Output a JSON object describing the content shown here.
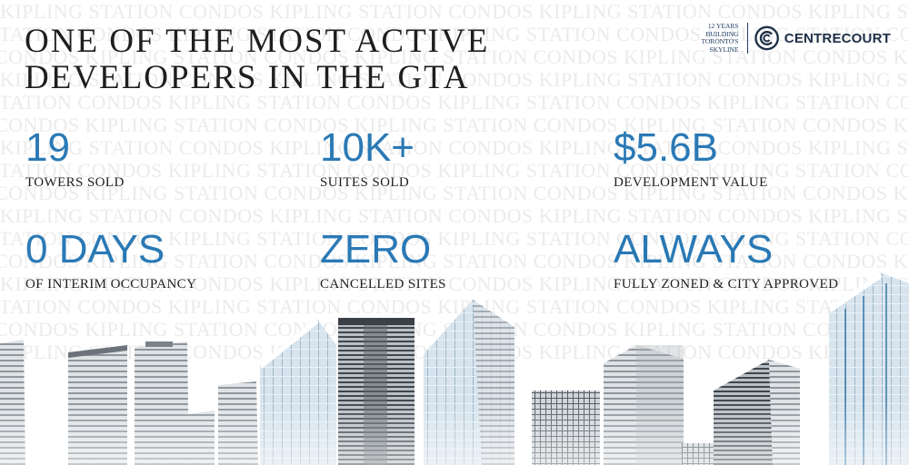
{
  "watermark": {
    "rows": [
      "KIPLING STATION CONDOS KIPLING STATION CONDOS KIPLING STATION CONDOS KIPLING STATION CONDOS KIPLING STATION",
      "STATION CONDOS KIPLING STATION CONDOS KIPLING STATION CONDOS KIPLING STATION CONDOS KIPLING STATION CONDOS",
      "CONDOS KIPLING STATION CONDOS KIPLING STATION CONDOS KIPLING STATION CONDOS KIPLING STATION CONDOS KIPLING",
      "KIPLING STATION CONDOS KIPLING STATION CONDOS KIPLING STATION CONDOS KIPLING STATION CONDOS KIPLING STATION",
      "STATION CONDOS KIPLING STATION CONDOS KIPLING STATION CONDOS KIPLING STATION CONDOS KIPLING STATION CONDOS",
      "CONDOS KIPLING STATION CONDOS KIPLING STATION CONDOS KIPLING STATION CONDOS KIPLING STATION CONDOS KIPLING",
      "KIPLING STATION CONDOS KIPLING STATION CONDOS KIPLING STATION CONDOS KIPLING STATION CONDOS KIPLING STATION",
      "STATION CONDOS KIPLING STATION CONDOS KIPLING STATION CONDOS KIPLING STATION CONDOS KIPLING STATION CONDOS",
      "CONDOS KIPLING STATION CONDOS KIPLING STATION CONDOS KIPLING STATION CONDOS KIPLING STATION CONDOS KIPLING",
      "KIPLING STATION CONDOS KIPLING STATION CONDOS KIPLING STATION CONDOS KIPLING STATION CONDOS KIPLING STATION",
      "STATION CONDOS KIPLING STATION CONDOS KIPLING STATION CONDOS KIPLING STATION CONDOS KIPLING STATION CONDOS",
      "CONDOS KIPLING STATION CONDOS KIPLING STATION CONDOS KIPLING STATION CONDOS KIPLING STATION CONDOS KIPLING",
      "KIPLING STATION CONDOS KIPLING STATION CONDOS KIPLING STATION CONDOS KIPLING STATION CONDOS KIPLING STATION",
      "STATION CONDOS KIPLING STATION CONDOS KIPLING STATION CONDOS KIPLING STATION CONDOS KIPLING STATION CONDOS",
      "CONDOS KIPLING STATION CONDOS KIPLING STATION CONDOS KIPLING STATION CONDOS KIPLING STATION CONDOS KIPLING",
      "KIPLING STATION CONDOS KIPLING STATION CONDOS KIPLING STATION CONDOS KIPLING STATION CONDOS KIPLING STATION"
    ]
  },
  "headline": {
    "line1": "ONE OF THE MOST ACTIVE",
    "line2": "DEVELOPERS IN THE GTA"
  },
  "brand": {
    "tagline": [
      "12 YEARS",
      "BUILDING",
      "TORONTO'S",
      "SKYLINE"
    ],
    "name": "CentreCourt",
    "icon": "centrecourt-logo-icon"
  },
  "stats": [
    {
      "value": "19",
      "label": "TOWERS SOLD"
    },
    {
      "value": "10K+",
      "label": "SUITES SOLD"
    },
    {
      "value": "$5.6B",
      "label": "DEVELOPMENT VALUE"
    },
    {
      "value": "0 DAYS",
      "label": "OF INTERIM OCCUPANCY"
    },
    {
      "value": "ZERO",
      "label": "CANCELLED SITES"
    },
    {
      "value": "ALWAYS",
      "label": "FULLY ZONED & CITY APPROVED"
    }
  ],
  "colors": {
    "accent": "#2a79b5",
    "text": "#1e1e1e",
    "brand": "#1e2f47",
    "watermark": "#ebebeb"
  }
}
